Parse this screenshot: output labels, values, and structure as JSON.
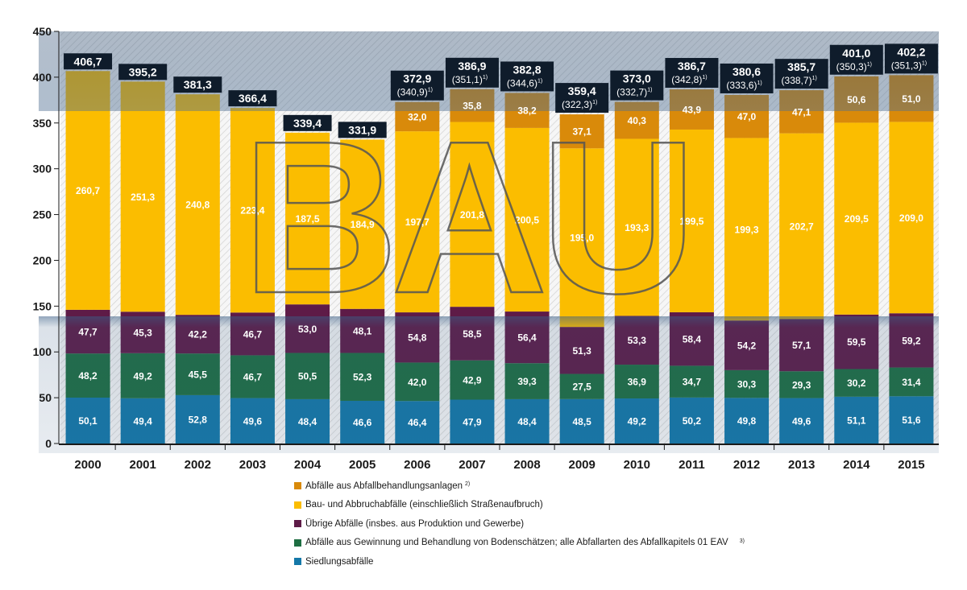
{
  "colors": {
    "siedlung": "#1478a8",
    "bodenschaetze": "#1e6e42",
    "uebrige": "#5e1b47",
    "bau": "#fbbd00",
    "behandlung": "#d98a0a",
    "total_box": "#0f1c2b"
  },
  "watermark": "BAU",
  "legend": [
    {
      "key": "behandlung",
      "label": "Abfälle aus Abfallbehandlungsanlagen",
      "sup": "2)"
    },
    {
      "key": "bau",
      "label": "Bau- und Abbruchabfälle (einschließlich Straßenaufbruch)",
      "sup": ""
    },
    {
      "key": "uebrige",
      "label": "Übrige Abfälle (insbes. aus Produktion und Gewerbe)",
      "sup": ""
    },
    {
      "key": "bodenschaetze",
      "label": "Abfälle aus Gewinnung und Behandlung von Bodenschätzen; alle Abfallarten des Abfallkapitels 01 EAV",
      "sup": "3)"
    },
    {
      "key": "siedlung",
      "label": "Siedlungsabfälle",
      "sup": ""
    }
  ],
  "chart_data": {
    "type": "bar",
    "stacked": true,
    "categories": [
      "2000",
      "2001",
      "2002",
      "2003",
      "2004",
      "2005",
      "2006",
      "2007",
      "2008",
      "2009",
      "2010",
      "2011",
      "2012",
      "2013",
      "2014",
      "2015"
    ],
    "ylim": [
      0,
      450
    ],
    "yticks": [
      0,
      50,
      100,
      150,
      200,
      250,
      300,
      350,
      400,
      450
    ],
    "grid": false,
    "series": [
      {
        "name": "Siedlungsabfälle",
        "key": "siedlung",
        "values": [
          50.1,
          49.4,
          52.8,
          49.6,
          48.4,
          46.6,
          46.4,
          47.9,
          48.4,
          48.5,
          49.2,
          50.2,
          49.8,
          49.6,
          51.1,
          51.6
        ],
        "labels": [
          "50,1",
          "49,4",
          "52,8",
          "49,6",
          "48,4",
          "46,6",
          "46,4",
          "47,9",
          "48,4",
          "48,5",
          "49,2",
          "50,2",
          "49,8",
          "49,6",
          "51,1",
          "51,6"
        ]
      },
      {
        "name": "Abfälle aus Gewinnung und Behandlung von Bodenschätzen; alle Abfallarten des Abfallkapitels 01 EAV",
        "key": "bodenschaetze",
        "values": [
          48.2,
          49.2,
          45.5,
          46.7,
          50.5,
          52.3,
          42.0,
          42.9,
          39.3,
          27.5,
          36.9,
          34.7,
          30.3,
          29.3,
          30.2,
          31.4
        ],
        "labels": [
          "48,2",
          "49,2",
          "45,5",
          "46,7",
          "50,5",
          "52,3",
          "42,0",
          "42,9",
          "39,3",
          "27,5",
          "36,9",
          "34,7",
          "30,3",
          "29,3",
          "30,2",
          "31,4"
        ]
      },
      {
        "name": "Übrige Abfälle (insbes. aus Produktion und Gewerbe)",
        "key": "uebrige",
        "values": [
          47.7,
          45.3,
          42.2,
          46.7,
          53.0,
          48.1,
          54.8,
          58.5,
          56.4,
          51.3,
          53.3,
          58.4,
          54.2,
          57.1,
          59.5,
          59.2
        ],
        "labels": [
          "47,7",
          "45,3",
          "42,2",
          "46,7",
          "53,0",
          "48,1",
          "54,8",
          "58,5",
          "56,4",
          "51,3",
          "53,3",
          "58,4",
          "54,2",
          "57,1",
          "59,5",
          "59,2"
        ]
      },
      {
        "name": "Bau- und Abbruchabfälle (einschließlich Straßenaufbruch)",
        "key": "bau",
        "values": [
          260.7,
          251.3,
          240.8,
          223.4,
          187.5,
          184.9,
          197.7,
          201.8,
          200.5,
          195.0,
          193.3,
          199.5,
          199.3,
          202.7,
          209.5,
          209.0
        ],
        "labels": [
          "260,7",
          "251,3",
          "240,8",
          "223,4",
          "187,5",
          "184,9",
          "197,7",
          "201,8",
          "200,5",
          "195,0",
          "193,3",
          "199,5",
          "199,3",
          "202,7",
          "209,5",
          "209,0"
        ]
      },
      {
        "name": "Abfälle aus Abfallbehandlungsanlagen",
        "key": "behandlung",
        "values": [
          0,
          0,
          0,
          0,
          0,
          0,
          32.0,
          35.8,
          38.2,
          37.1,
          40.3,
          43.9,
          47.0,
          47.1,
          50.6,
          51.0
        ],
        "labels": [
          "",
          "",
          "",
          "",
          "",
          "",
          "32,0",
          "35,8",
          "38,2",
          "37,1",
          "40,3",
          "43,9",
          "47,0",
          "47,1",
          "50,6",
          "51,0"
        ]
      }
    ],
    "totals": [
      406.7,
      395.2,
      381.3,
      366.4,
      339.4,
      331.9,
      372.9,
      386.9,
      382.8,
      359.4,
      373.0,
      386.7,
      380.6,
      385.7,
      401.0,
      402.2
    ],
    "total_labels": [
      "406,7",
      "395,2",
      "381,3",
      "366,4",
      "339,4",
      "331,9",
      "372,9",
      "386,9",
      "382,8",
      "359,4",
      "373,0",
      "386,7",
      "380,6",
      "385,7",
      "401,0",
      "402,2"
    ],
    "total_sub_labels": [
      "",
      "",
      "",
      "",
      "",
      "",
      "(340,9)",
      "(351,1)",
      "(344,6)",
      "(322,3)",
      "(332,7)",
      "(342,8)",
      "(333,6)",
      "(338,7)",
      "(350,3)",
      "(351,3)"
    ],
    "total_sub_sup": "1)"
  }
}
